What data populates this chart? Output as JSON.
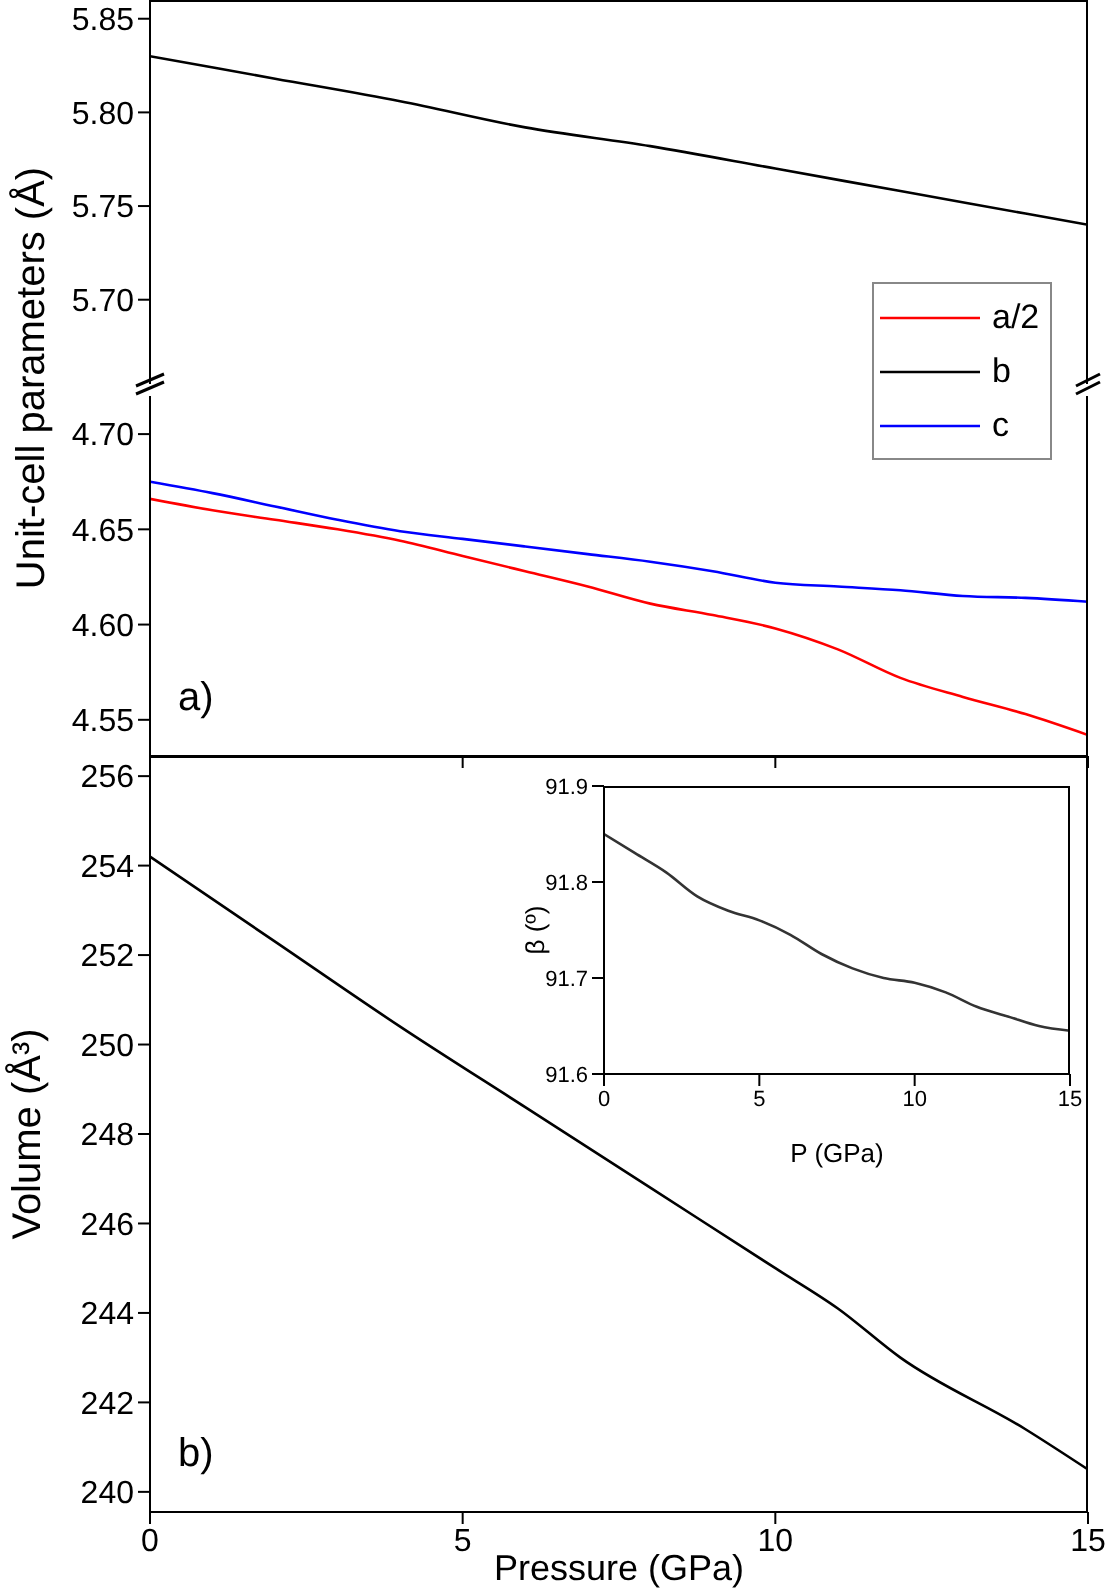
{
  "chart_data": [
    {
      "type": "line",
      "ylabel": "Unit-cell parameters (Å)",
      "x": [
        0,
        2,
        4,
        6,
        8,
        10,
        12,
        14,
        15
      ],
      "xlim": [
        0,
        15
      ],
      "ylim": [
        5.655,
        5.86
      ],
      "yticks": [
        {
          "value": 5.7,
          "label": "5.70"
        },
        5.75,
        {
          "value": 5.8,
          "label": "5.80"
        },
        5.85
      ],
      "tick_labels": "y",
      "legend": "right",
      "series": [
        {
          "name": "b",
          "color": "#000000",
          "values": [
            5.83,
            5.818,
            5.806,
            5.792,
            5.782,
            5.77,
            5.758,
            5.746,
            5.74
          ]
        }
      ]
    },
    {
      "type": "line",
      "annotations": [
        "a)"
      ],
      "x": [
        0,
        1,
        2,
        3,
        4,
        5,
        6,
        7,
        8,
        9,
        10,
        11,
        12,
        13,
        14,
        15
      ],
      "xlim": [
        0,
        15
      ],
      "xticks": [
        0,
        5,
        10,
        15
      ],
      "ylim": [
        4.531,
        4.72
      ],
      "yticks": [
        4.55,
        {
          "value": 4.6,
          "label": "4.60"
        },
        4.65,
        {
          "value": 4.7,
          "label": "4.70"
        }
      ],
      "tick_labels": "y",
      "legend": "right",
      "series": [
        {
          "name": "a/2",
          "color": "#ff0000",
          "values": [
            4.666,
            4.66,
            4.655,
            4.65,
            4.644,
            4.636,
            4.628,
            4.62,
            4.611,
            4.605,
            4.598,
            4.587,
            4.572,
            4.562,
            4.553,
            4.542
          ]
        },
        {
          "name": "c",
          "color": "#0000ff",
          "values": [
            4.675,
            4.669,
            4.662,
            4.655,
            4.649,
            4.645,
            4.641,
            4.637,
            4.633,
            4.628,
            4.622,
            4.62,
            4.618,
            4.615,
            4.614,
            4.612
          ]
        }
      ]
    },
    {
      "type": "line",
      "xlabel": "Pressure (GPa)",
      "ylabel": "Volume (Å³)",
      "annotations": [
        "b)"
      ],
      "x": [
        0,
        2,
        4,
        6,
        8,
        10,
        11,
        12,
        14,
        15
      ],
      "xlim": [
        0,
        15
      ],
      "xticks": [
        0,
        5,
        10,
        15
      ],
      "ylim": [
        239.55,
        256.45
      ],
      "yticks": [
        240,
        242,
        244,
        246,
        248,
        250,
        252,
        254,
        256
      ],
      "series": [
        {
          "color": "#000000",
          "values": [
            254.2,
            252.3,
            250.4,
            248.6,
            246.8,
            245.0,
            244.1,
            243.0,
            241.4,
            240.5
          ]
        }
      ]
    },
    {
      "type": "line",
      "xlabel": "P (GPa)",
      "ylabel": "β (º)",
      "x": [
        0,
        1,
        2,
        3,
        4,
        5,
        6,
        7,
        8,
        9,
        10,
        11,
        12,
        13,
        14,
        15
      ],
      "xlim": [
        0,
        15
      ],
      "xticks": [
        0,
        5,
        10,
        15
      ],
      "ylim": [
        91.6,
        91.9
      ],
      "yticks": [
        91.6,
        91.7,
        91.8,
        91.9
      ],
      "series": [
        {
          "color": "#333333",
          "values": [
            91.85,
            91.83,
            91.81,
            91.785,
            91.77,
            91.76,
            91.745,
            91.725,
            91.71,
            91.7,
            91.695,
            91.685,
            91.67,
            91.66,
            91.65,
            91.645
          ]
        }
      ]
    }
  ]
}
